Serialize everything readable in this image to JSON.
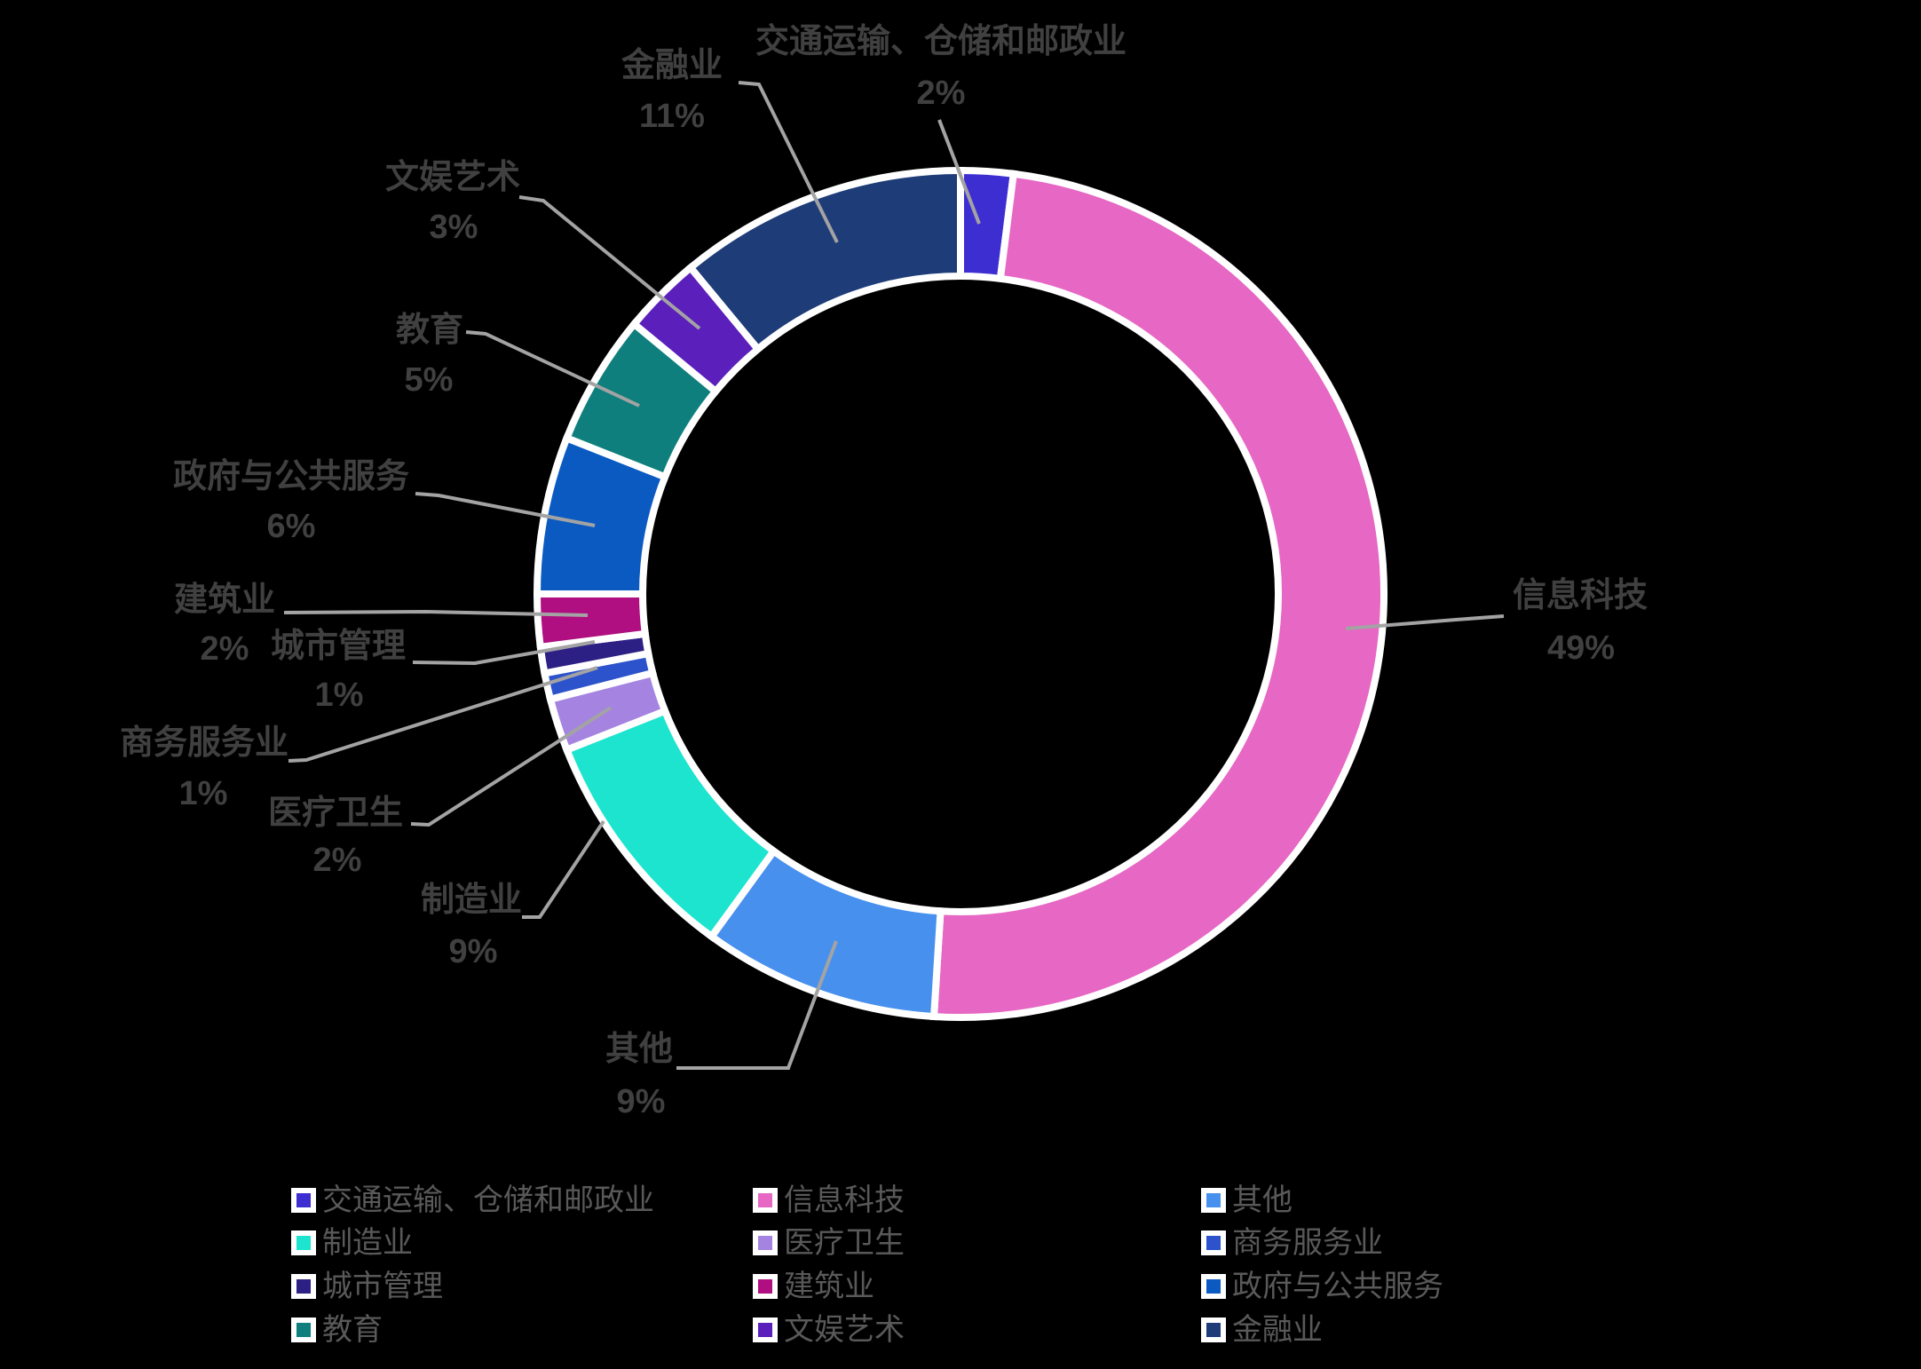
{
  "background": "#000000",
  "chart_data": {
    "type": "pie",
    "subtype": "doughnut",
    "title": "",
    "unit": "%",
    "categories": [
      "交通运输、仓储和邮政业",
      "信息科技",
      "其他",
      "制造业",
      "医疗卫生",
      "商务服务业",
      "城市管理",
      "建筑业",
      "政府与公共服务",
      "教育",
      "文娱艺术",
      "金融业"
    ],
    "values": [
      2,
      49,
      9,
      9,
      2,
      1,
      1,
      2,
      6,
      5,
      3,
      11
    ],
    "percent_labels": [
      "2%",
      "49%",
      "9%",
      "9%",
      "2%",
      "1%",
      "1%",
      "2%",
      "6%",
      "5%",
      "3%",
      "11%"
    ],
    "colors": [
      "#3D2ED2",
      "#E667C4",
      "#4790EE",
      "#1DE4CE",
      "#A584E1",
      "#2C53CB",
      "#2D2084",
      "#AF0F80",
      "#0A5AC2",
      "#0E7F7D",
      "#5B1FBC",
      "#1E3C78"
    ],
    "start_angle_deg": 0,
    "direction": "clockwise",
    "donut_hole": 0.75,
    "segment_border_color": "#FFFFFF",
    "grid": false,
    "legend_position": "bottom",
    "legend_columns": 3
  },
  "styles": {
    "label_color": "#404040",
    "leader_line_color": "#A3A3A3",
    "legend_text_color": "#595959"
  }
}
